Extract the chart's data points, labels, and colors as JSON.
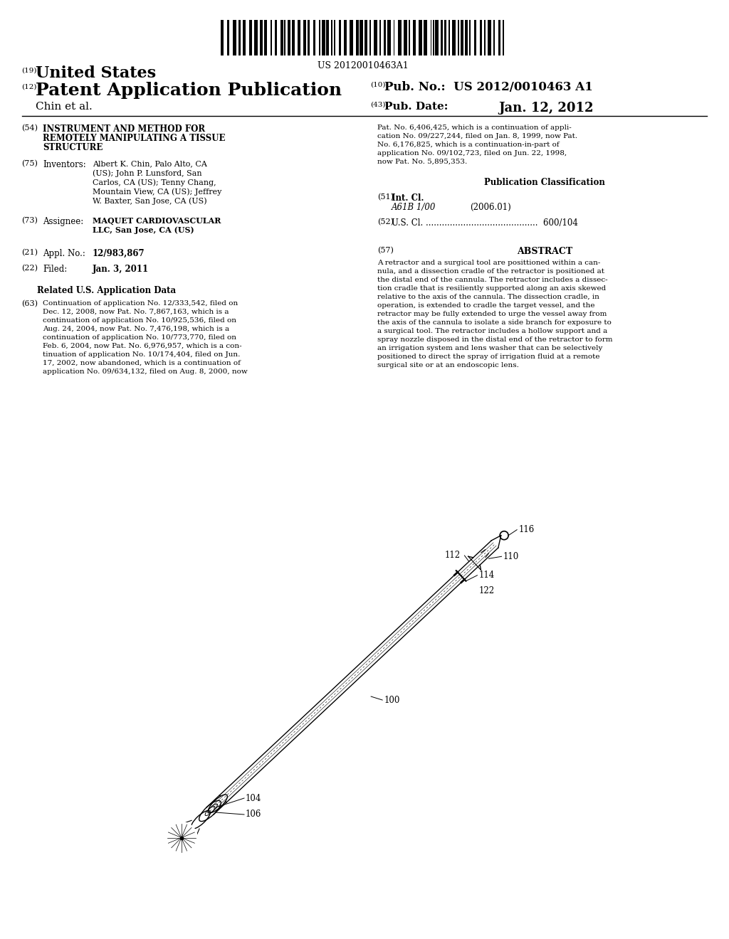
{
  "background_color": "#ffffff",
  "barcode_text": "US 20120010463A1",
  "header": {
    "tag19": "(19)",
    "united_states": "United States",
    "tag12": "(12)",
    "patent_app_pub": "Patent Application Publication",
    "tag10": "(10)",
    "pub_no_label": "Pub. No.:",
    "pub_no_value": "US 2012/0010463 A1",
    "inventors_line": "Chin et al.",
    "tag43": "(43)",
    "pub_date_label": "Pub. Date:",
    "pub_date_value": "Jan. 12, 2012"
  },
  "left_col": {
    "tag54": "(54)",
    "title_lines": [
      "INSTRUMENT AND METHOD FOR",
      "REMOTELY MANIPULATING A TISSUE",
      "STRUCTURE"
    ],
    "tag75": "(75)",
    "inventors_label": "Inventors:",
    "inventors_text": "Albert K. Chin, Palo Alto, CA\n(US); John P. Lunsford, San\nCarlos, CA (US); Tenny Chang,\nMountain View, CA (US); Jeffrey\nW. Baxter, San Jose, CA (US)",
    "tag73": "(73)",
    "assignee_label": "Assignee:",
    "assignee_text": "MAQUET CARDIOVASCULAR\nLLC, San Jose, CA (US)",
    "tag21": "(21)",
    "appl_no_label": "Appl. No.:",
    "appl_no_value": "12/983,867",
    "tag22": "(22)",
    "filed_label": "Filed:",
    "filed_value": "Jan. 3, 2011",
    "related_title": "Related U.S. Application Data",
    "tag63": "(63)",
    "related_text": "Continuation of application No. 12/333,542, filed on\nDec. 12, 2008, now Pat. No. 7,867,163, which is a\ncontinuation of application No. 10/925,536, filed on\nAug. 24, 2004, now Pat. No. 7,476,198, which is a\ncontinuation of application No. 10/773,770, filed on\nFeb. 6, 2004, now Pat. No. 6,976,957, which is a con-\ntinuation of application No. 10/174,404, filed on Jun.\n17, 2002, now abandoned, which is a continuation of\napplication No. 09/634,132, filed on Aug. 8, 2000, now"
  },
  "right_col": {
    "cont_text": "Pat. No. 6,406,425, which is a continuation of appli-\ncation No. 09/227,244, filed on Jan. 8, 1999, now Pat.\nNo. 6,176,825, which is a continuation-in-part of\napplication No. 09/102,723, filed on Jun. 22, 1998,\nnow Pat. No. 5,895,353.",
    "pub_class_title": "Publication Classification",
    "tag51": "(51)",
    "int_cl_label": "Int. Cl.",
    "int_cl_value": "A61B 1/00",
    "int_cl_year": "(2006.01)",
    "tag52": "(52)",
    "us_cl_label": "U.S. Cl.",
    "us_cl_value": "600/104",
    "tag57": "(57)",
    "abstract_title": "ABSTRACT",
    "abstract_text": "A retractor and a surgical tool are posittioned within a can-\nnula, and a dissection cradle of the retractor is positioned at\nthe distal end of the cannula. The retractor includes a dissec-\ntion cradle that is resiliently supported along an axis skewed\nrelative to the axis of the cannula. The dissection cradle, in\noperation, is extended to cradle the target vessel, and the\nretractor may be fully extended to urge the vessel away from\nthe axis of the cannula to isolate a side branch for exposure to\na surgical tool. The retractor includes a hollow support and a\nspray nozzle disposed in the distal end of the retractor to form\nan irrigation system and lens washer that can be selectively\npositioned to direct the spray of irrigation fluid at a remote\nsurgical site or at an endoscopic lens."
  },
  "diagram": {
    "label_100": "100",
    "label_104": "104",
    "label_106": "106",
    "label_110": "110",
    "label_112": "112",
    "label_114": "114",
    "label_116": "116",
    "label_122": "122"
  }
}
